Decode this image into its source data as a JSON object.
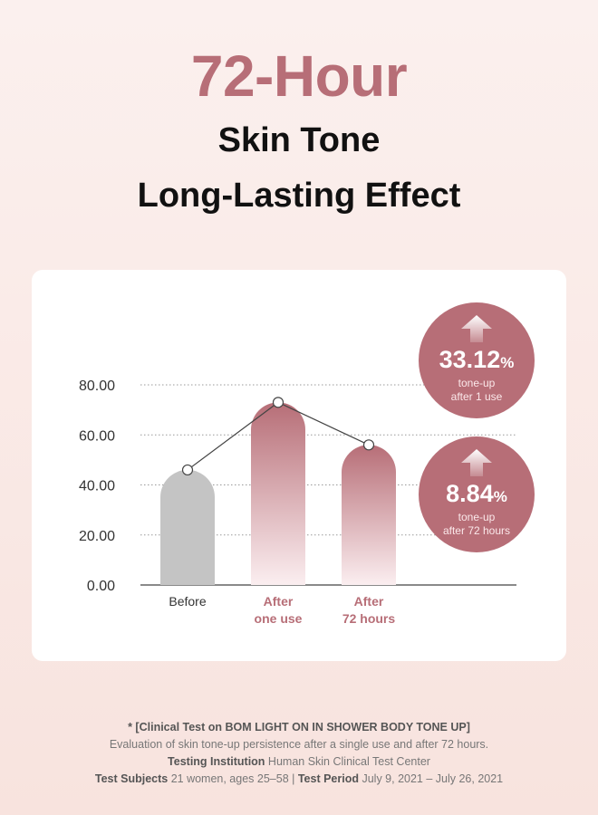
{
  "header": {
    "accent": "72-Hour",
    "line1": "Skin Tone",
    "line2": "Long-Lasting Effect"
  },
  "colors": {
    "accent": "#b76e77",
    "before_bar": "#c4c4c4",
    "background": "#fbf0ee"
  },
  "chart_data": {
    "type": "bar",
    "categories": [
      "Before",
      "After one use",
      "After 72 hours"
    ],
    "category_labels": [
      [
        "Before"
      ],
      [
        "After",
        "one use"
      ],
      [
        "After",
        "72 hours"
      ]
    ],
    "values": [
      46,
      73,
      56
    ],
    "ylim": [
      0,
      80
    ],
    "yticks": [
      "80.00",
      "60.00",
      "40.00",
      "20.00",
      "0.00"
    ],
    "ytick_values": [
      80,
      60,
      40,
      20,
      0
    ],
    "grid": true,
    "line_overlay": true
  },
  "badges": [
    {
      "value": "33.12",
      "unit": "%",
      "line1": "tone-up",
      "line2": "after 1 use",
      "icon": "arrow-up-icon"
    },
    {
      "value": "8.84",
      "unit": "%",
      "line1": "tone-up",
      "line2": "after 72 hours",
      "icon": "arrow-up-icon"
    }
  ],
  "footnote": {
    "title": "* [Clinical Test on BOM LIGHT ON IN SHOWER BODY TONE UP]",
    "desc": "Evaluation of skin tone-up persistence after a single use and after 72 hours.",
    "institution_label": "Testing Institution",
    "institution_value": " Human Skin Clinical Test Center",
    "subjects_label": "Test Subjects",
    "subjects_value": " 21 women, ages 25–58 | ",
    "period_label": "Test Period",
    "period_value": " July 9, 2021 – July 26, 2021"
  }
}
